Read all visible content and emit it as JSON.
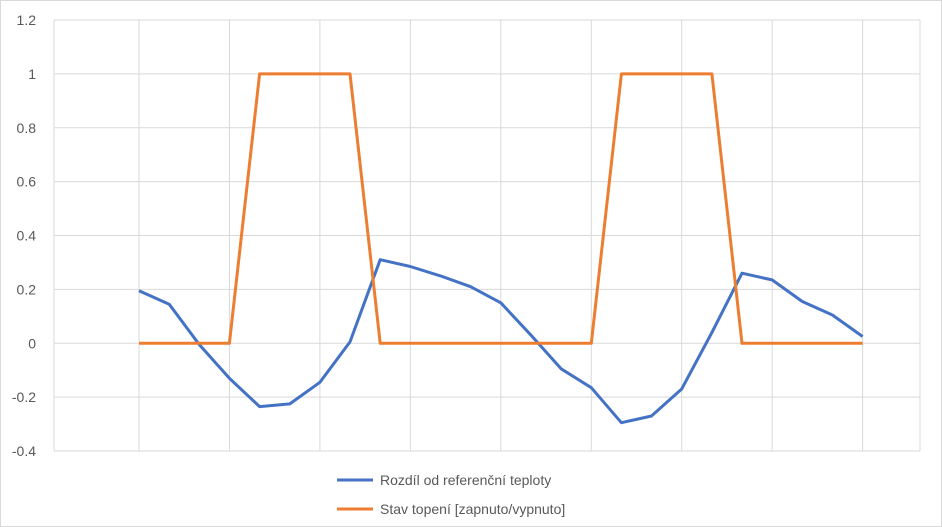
{
  "chart_data": {
    "type": "line",
    "x_count": 25,
    "ylim": [
      -0.4,
      1.2
    ],
    "yticks": [
      -0.4,
      -0.2,
      0,
      0.2,
      0.4,
      0.6,
      0.8,
      1,
      1.2
    ],
    "ytick_labels": [
      "-0.4",
      "-0.2",
      "0",
      "0.2",
      "0.4",
      "0.6",
      "0.8",
      "1",
      "1.2"
    ],
    "grid": true,
    "legend_position": "bottom",
    "series": [
      {
        "name": "Rozdíl od referenční teploty",
        "color": "#4472C4",
        "values": [
          0.195,
          0.145,
          -0.005,
          -0.13,
          -0.235,
          -0.225,
          -0.145,
          0.005,
          0.31,
          0.285,
          0.25,
          0.21,
          0.15,
          0.03,
          -0.095,
          -0.165,
          -0.295,
          -0.27,
          -0.17,
          0.04,
          0.26,
          0.235,
          0.155,
          0.105,
          0.025
        ]
      },
      {
        "name": "Stav topení [zapnuto/vypnuto]",
        "color": "#ED7D31",
        "values": [
          0,
          0,
          0,
          0,
          1,
          1,
          1,
          1,
          0,
          0,
          0,
          0,
          0,
          0,
          0,
          0,
          1,
          1,
          1,
          1,
          0,
          0,
          0,
          0,
          0
        ]
      }
    ]
  }
}
